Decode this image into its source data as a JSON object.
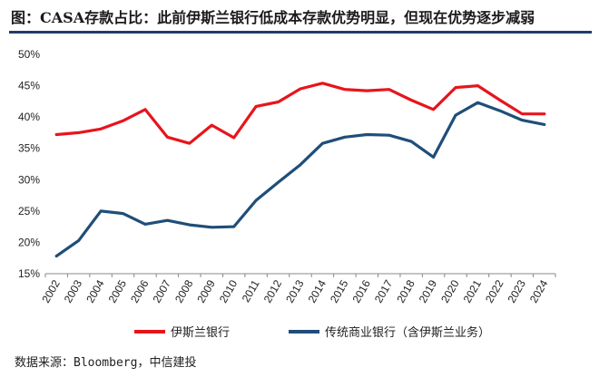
{
  "title": "图：CASA存款占比：此前伊斯兰银行低成本存款优势明显，但现在优势逐步减弱",
  "source": "数据来源：Bloomberg，中信建投",
  "colors": {
    "accent": "#1f3d66"
  },
  "chart_data": {
    "type": "line",
    "x": [
      "2002",
      "2003",
      "2004",
      "2005",
      "2006",
      "2007",
      "2008",
      "2009",
      "2010",
      "2011",
      "2012",
      "2013",
      "2014",
      "2015",
      "2016",
      "2017",
      "2018",
      "2019",
      "2020",
      "2021",
      "2022",
      "2023",
      "2024"
    ],
    "yticks": [
      "15%",
      "20%",
      "25%",
      "30%",
      "35%",
      "40%",
      "45%",
      "50%"
    ],
    "ylim": [
      15,
      50
    ],
    "grid": false,
    "legend_position": "bottom",
    "series": [
      {
        "name": "伊斯兰银行",
        "color": "#e8141c",
        "values": [
          37.2,
          37.5,
          38.1,
          39.4,
          41.2,
          36.8,
          35.8,
          38.7,
          36.7,
          41.7,
          42.4,
          44.5,
          45.4,
          44.4,
          44.2,
          44.4,
          42.7,
          41.2,
          44.7,
          45.0,
          42.7,
          40.5,
          40.5
        ]
      },
      {
        "name": "传统商业银行（含伊斯兰业务）",
        "color": "#1f4e79",
        "values": [
          17.8,
          20.3,
          25.0,
          24.6,
          22.9,
          23.5,
          22.8,
          22.4,
          22.5,
          26.7,
          29.6,
          32.4,
          35.8,
          36.8,
          37.2,
          37.1,
          36.1,
          33.6,
          40.3,
          42.3,
          41.0,
          39.5,
          38.8
        ]
      }
    ]
  }
}
